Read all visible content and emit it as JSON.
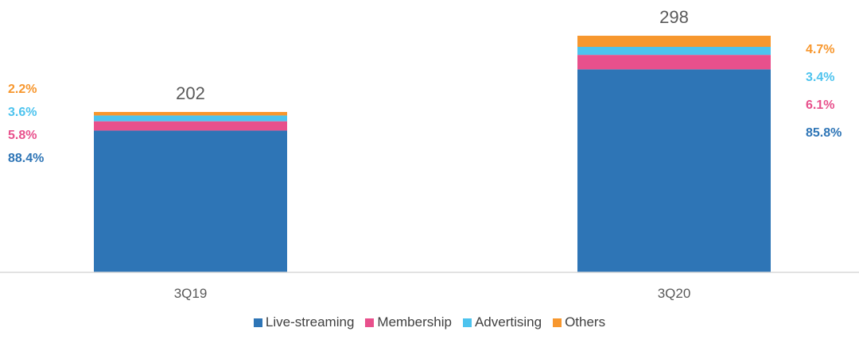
{
  "chart_data": {
    "type": "bar",
    "stacked": true,
    "categories": [
      "3Q19",
      "3Q20"
    ],
    "totals": [
      202,
      298
    ],
    "total_labels": [
      "202",
      "298"
    ],
    "ylim": [
      0,
      320
    ],
    "grid": false,
    "legend_position": "bottom",
    "series": [
      {
        "name": "Live-streaming",
        "color": "#2E75B6",
        "pct": [
          88.4,
          85.8
        ],
        "labels": [
          "88.4%",
          "85.8%"
        ]
      },
      {
        "name": "Membership",
        "color": "#E8508C",
        "pct": [
          5.8,
          6.1
        ],
        "labels": [
          "5.8%",
          "6.1%"
        ]
      },
      {
        "name": "Advertising",
        "color": "#4DC3EE",
        "pct": [
          3.6,
          3.4
        ],
        "labels": [
          "3.6%",
          "3.4%"
        ]
      },
      {
        "name": "Others",
        "color": "#F7972E",
        "pct": [
          2.2,
          4.7
        ],
        "labels": [
          "2.2%",
          "4.7%"
        ]
      }
    ]
  }
}
